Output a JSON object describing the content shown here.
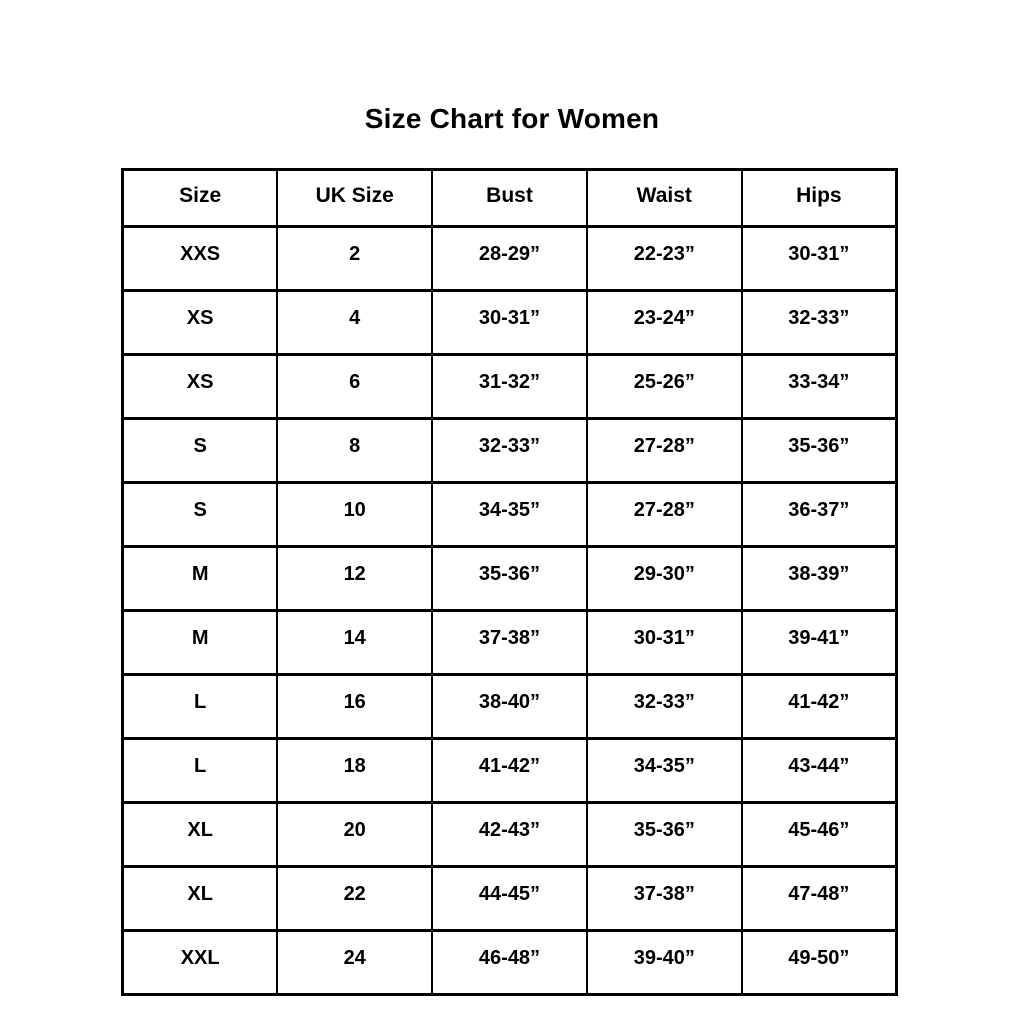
{
  "page_title": "Size Chart for Women",
  "colors": {
    "background": "#ffffff",
    "border": "#000000",
    "text": "#000000"
  },
  "chart_data": {
    "type": "table",
    "title": "Size Chart for Women",
    "columns": [
      "Size",
      "UK Size",
      "Bust",
      "Waist",
      "Hips"
    ],
    "rows": [
      [
        "XXS",
        "2",
        "28-29”",
        "22-23”",
        "30-31”"
      ],
      [
        "XS",
        "4",
        "30-31”",
        "23-24”",
        "32-33”"
      ],
      [
        "XS",
        "6",
        "31-32”",
        "25-26”",
        "33-34”"
      ],
      [
        "S",
        "8",
        "32-33”",
        "27-28”",
        "35-36”"
      ],
      [
        "S",
        "10",
        "34-35”",
        "27-28”",
        "36-37”"
      ],
      [
        "M",
        "12",
        "35-36”",
        "29-30”",
        "38-39”"
      ],
      [
        "M",
        "14",
        "37-38”",
        "30-31”",
        "39-41”"
      ],
      [
        "L",
        "16",
        "38-40”",
        "32-33”",
        "41-42”"
      ],
      [
        "L",
        "18",
        "41-42”",
        "34-35”",
        "43-44”"
      ],
      [
        "XL",
        "20",
        "42-43”",
        "35-36”",
        "45-46”"
      ],
      [
        "XL",
        "22",
        "44-45”",
        "37-38”",
        "47-48”"
      ],
      [
        "XXL",
        "24",
        "46-48”",
        "39-40”",
        "49-50”"
      ]
    ]
  }
}
